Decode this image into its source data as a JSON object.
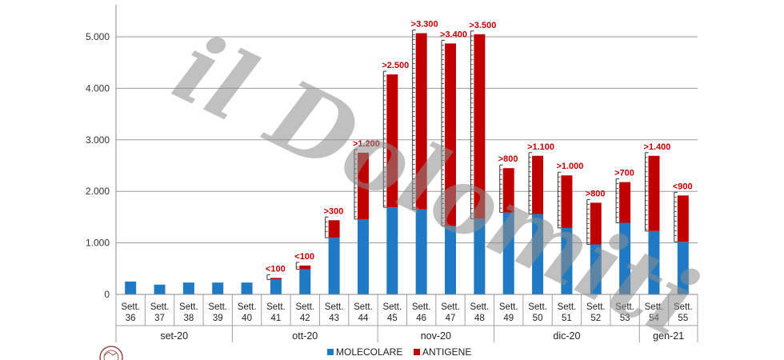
{
  "watermark": "il Dolomiti",
  "chart_data": {
    "type": "bar",
    "stacked": true,
    "ylim": [
      0,
      5500
    ],
    "yticks": [
      0,
      1000,
      2000,
      3000,
      4000,
      5000
    ],
    "ytick_labels": [
      "0",
      "1.000",
      "2.000",
      "3.000",
      "4.000",
      "5.000"
    ],
    "grid": true,
    "legend_position": "bottom",
    "categories": [
      "Sett. 36",
      "Sett. 37",
      "Sett. 38",
      "Sett. 39",
      "Sett. 40",
      "Sett. 41",
      "Sett. 42",
      "Sett. 43",
      "Sett. 44",
      "Sett. 45",
      "Sett. 46",
      "Sett. 47",
      "Sett. 48",
      "Sett. 49",
      "Sett. 50",
      "Sett. 51",
      "Sett. 52",
      "Sett. 53",
      "Sett. 54",
      "Sett. 55"
    ],
    "category_lines": [
      [
        "Sett.",
        "36"
      ],
      [
        "Sett.",
        "37"
      ],
      [
        "Sett.",
        "38"
      ],
      [
        "Sett.",
        "39"
      ],
      [
        "Sett.",
        "40"
      ],
      [
        "Sett.",
        "41"
      ],
      [
        "Sett.",
        "42"
      ],
      [
        "Sett.",
        "43"
      ],
      [
        "Sett.",
        "44"
      ],
      [
        "Sett.",
        "45"
      ],
      [
        "Sett.",
        "46"
      ],
      [
        "Sett.",
        "47"
      ],
      [
        "Sett.",
        "48"
      ],
      [
        "Sett.",
        "49"
      ],
      [
        "Sett.",
        "50"
      ],
      [
        "Sett.",
        "51"
      ],
      [
        "Sett.",
        "52"
      ],
      [
        "Sett.",
        "53"
      ],
      [
        "Sett.",
        "54"
      ],
      [
        "Sett.",
        "55"
      ]
    ],
    "months": [
      {
        "label": "set-20",
        "start": 0,
        "end": 3
      },
      {
        "label": "ott-20",
        "start": 4,
        "end": 8
      },
      {
        "label": "nov-20",
        "start": 9,
        "end": 12
      },
      {
        "label": "dic-20",
        "start": 13,
        "end": 17
      },
      {
        "label": "gen-21",
        "start": 18,
        "end": 19
      }
    ],
    "series": [
      {
        "name": "MOLECOLARE",
        "color": "#1f7ac3",
        "values": [
          250,
          190,
          230,
          230,
          230,
          290,
          490,
          1100,
          1460,
          1690,
          1650,
          1330,
          1470,
          1590,
          1560,
          1290,
          970,
          1390,
          1230,
          1020
        ]
      },
      {
        "name": "ANTIGENE",
        "color": "#c00000",
        "values": [
          0,
          0,
          0,
          0,
          0,
          30,
          70,
          340,
          1290,
          2580,
          3420,
          3540,
          3580,
          860,
          1130,
          1020,
          810,
          790,
          1460,
          900
        ]
      }
    ],
    "annotations": [
      {
        "index": 5,
        "text": "<100"
      },
      {
        "index": 6,
        "text": "<100"
      },
      {
        "index": 7,
        "text": ">300"
      },
      {
        "index": 8,
        "text": ">1.200"
      },
      {
        "index": 9,
        "text": ">2.500"
      },
      {
        "index": 10,
        "text": ">3.300"
      },
      {
        "index": 11,
        "text": ">3.400"
      },
      {
        "index": 12,
        "text": ">3.500"
      },
      {
        "index": 13,
        "text": ">800"
      },
      {
        "index": 14,
        "text": ">1.100"
      },
      {
        "index": 15,
        "text": ">1.000"
      },
      {
        "index": 16,
        "text": ">800"
      },
      {
        "index": 17,
        "text": ">700"
      },
      {
        "index": 18,
        "text": ">1.400"
      },
      {
        "index": 19,
        "text": "<900"
      }
    ]
  }
}
